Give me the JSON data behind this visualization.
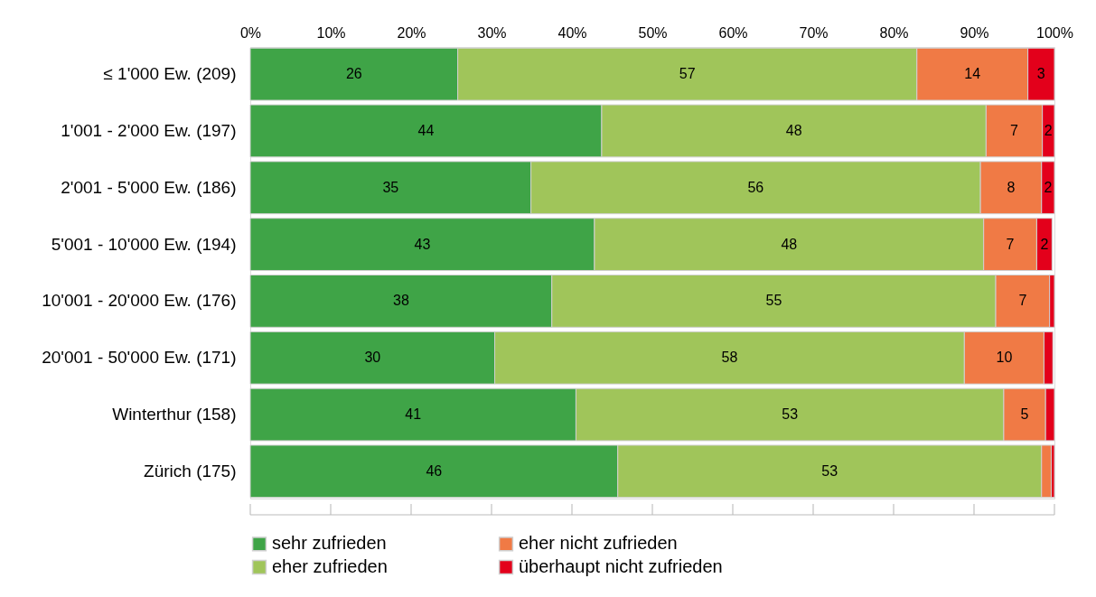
{
  "chart_data": {
    "type": "bar",
    "orientation": "horizontal",
    "stacked": true,
    "categories": [
      "≤ 1'000 Ew. (209)",
      "1'001 - 2'000 Ew. (197)",
      "2'001 - 5'000 Ew. (186)",
      "5'001 - 10'000 Ew. (194)",
      "10'001 - 20'000 Ew. (176)",
      "20'001 - 50'000 Ew. (171)",
      "Winterthur (158)",
      "Zürich (175)"
    ],
    "series": [
      {
        "name": "sehr zufrieden",
        "color": "#3fa447",
        "values": [
          25.8,
          43.7,
          34.9,
          42.8,
          37.5,
          30.4,
          40.5,
          45.7
        ],
        "value_labels": [
          "26",
          "44",
          "35",
          "43",
          "38",
          "30",
          "41",
          "46"
        ]
      },
      {
        "name": "eher zufrieden",
        "color": "#a0c55a",
        "values": [
          57.1,
          47.8,
          55.9,
          48.4,
          55.2,
          58.4,
          53.2,
          52.7
        ],
        "value_labels": [
          "57",
          "48",
          "56",
          "48",
          "55",
          "58",
          "53",
          "53"
        ]
      },
      {
        "name": "eher nicht zufrieden",
        "color": "#f07a45",
        "values": [
          13.8,
          7.0,
          7.6,
          6.6,
          6.7,
          9.9,
          5.2,
          1.2
        ],
        "value_labels": [
          "14",
          "7",
          "8",
          "7",
          "7",
          "10",
          "5",
          null
        ]
      },
      {
        "name": "überhaupt nicht zufrieden",
        "color": "#e3001b",
        "values": [
          3.3,
          1.5,
          1.6,
          1.9,
          0.6,
          1.1,
          1.1,
          0.4
        ],
        "value_labels": [
          "3",
          "2",
          "2",
          "2",
          null,
          null,
          null,
          null
        ]
      }
    ],
    "xlim": [
      0,
      100
    ],
    "xticks": [
      {
        "value": 0,
        "label": "0%"
      },
      {
        "value": 10,
        "label": "10%"
      },
      {
        "value": 20,
        "label": "20%"
      },
      {
        "value": 30,
        "label": "30%"
      },
      {
        "value": 40,
        "label": "40%"
      },
      {
        "value": 50,
        "label": "50%"
      },
      {
        "value": 60,
        "label": "60%"
      },
      {
        "value": 70,
        "label": "70%"
      },
      {
        "value": 80,
        "label": "80%"
      },
      {
        "value": 90,
        "label": "90%"
      },
      {
        "value": 100,
        "label": "100%"
      }
    ],
    "grid": false,
    "legend": "bottom"
  }
}
